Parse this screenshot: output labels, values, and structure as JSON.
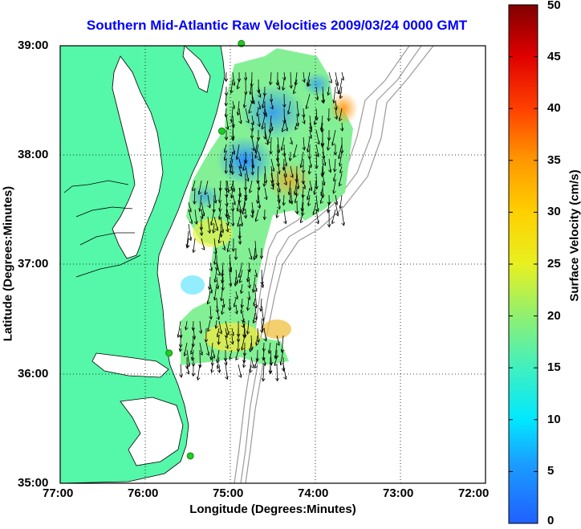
{
  "title": "Southern Mid-Atlantic Raw Velocities 2009/03/24 0000 GMT",
  "x_axis": {
    "label": "Longitude (Degrees:Minutes)",
    "ticks": [
      "77:00",
      "76:00",
      "75:00",
      "74:00",
      "73:00",
      "72:00"
    ]
  },
  "y_axis": {
    "label": "Latitude (Degrees:Minutes)",
    "ticks": [
      "39:00",
      "38:00",
      "37:00",
      "36:00",
      "35:00"
    ]
  },
  "colorbar": {
    "label": "Surface Velocity (cm/s)",
    "ticks": [
      "0",
      "5",
      "10",
      "15",
      "20",
      "25",
      "30",
      "35",
      "40",
      "45",
      "50"
    ],
    "range": [
      0,
      50
    ]
  },
  "colors": {
    "land": "#55f7a8",
    "coastline": "#000000",
    "bathymetry": "#9a9a9a",
    "stations": "#22cc22",
    "arrows": "#000000",
    "grid": "#000000"
  },
  "map": {
    "lon_range": [
      -77,
      -72
    ],
    "lat_range": [
      35,
      39
    ],
    "grid": "dotted",
    "stations": [
      {
        "lon": -74.87,
        "lat": 39.02
      },
      {
        "lon": -75.1,
        "lat": 38.22
      },
      {
        "lon": -75.72,
        "lat": 36.19
      },
      {
        "lon": -75.47,
        "lat": 35.25
      }
    ]
  }
}
